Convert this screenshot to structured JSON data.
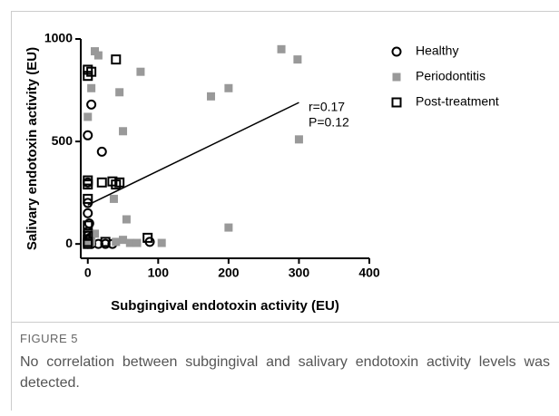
{
  "chart_data": {
    "type": "scatter",
    "xlabel": "Subgingival endotoxin activity (EU)",
    "ylabel": "Salivary endotoxin activity (EU)",
    "xlim": [
      -10,
      400
    ],
    "ylim": [
      -70,
      1000
    ],
    "xticks": [
      0,
      100,
      200,
      300,
      400
    ],
    "yticks": [
      0,
      500,
      1000
    ],
    "legend": "right",
    "series": [
      {
        "name": "Healthy",
        "color": "#000000",
        "marker": "circle-open",
        "x": [
          0,
          5,
          20,
          0,
          0,
          0,
          0,
          0,
          0,
          0,
          5,
          15,
          25,
          35,
          3,
          88,
          2
        ],
        "y": [
          530,
          680,
          450,
          300,
          200,
          150,
          60,
          40,
          20,
          0,
          0,
          0,
          0,
          0,
          30,
          10,
          100
        ]
      },
      {
        "name": "Periodontitis",
        "color": "#999999",
        "marker": "square",
        "x": [
          10,
          15,
          5,
          45,
          75,
          275,
          298,
          175,
          200,
          300,
          50,
          0,
          37,
          55,
          200,
          10,
          50,
          60,
          70,
          105,
          40,
          0,
          5
        ],
        "y": [
          940,
          920,
          760,
          740,
          840,
          950,
          900,
          720,
          760,
          510,
          550,
          620,
          220,
          120,
          80,
          50,
          20,
          5,
          5,
          5,
          10,
          0,
          10
        ]
      },
      {
        "name": "Post-treatment",
        "color": "#000000",
        "marker": "square-open",
        "x": [
          0,
          5,
          0,
          40,
          0,
          0,
          20,
          35,
          45,
          40,
          0,
          0,
          0,
          0,
          25,
          85,
          0
        ],
        "y": [
          850,
          840,
          820,
          900,
          310,
          290,
          300,
          305,
          300,
          290,
          220,
          90,
          40,
          10,
          10,
          30,
          0
        ]
      }
    ],
    "fit_line": {
      "x": [
        0,
        300
      ],
      "y": [
        190,
        690
      ]
    },
    "annotations": [
      "r=0.17",
      "P=0.12"
    ]
  },
  "caption": {
    "label": "FIGURE 5",
    "text": "No correlation between subgingival and salivary endotoxin activity levels was detected."
  }
}
